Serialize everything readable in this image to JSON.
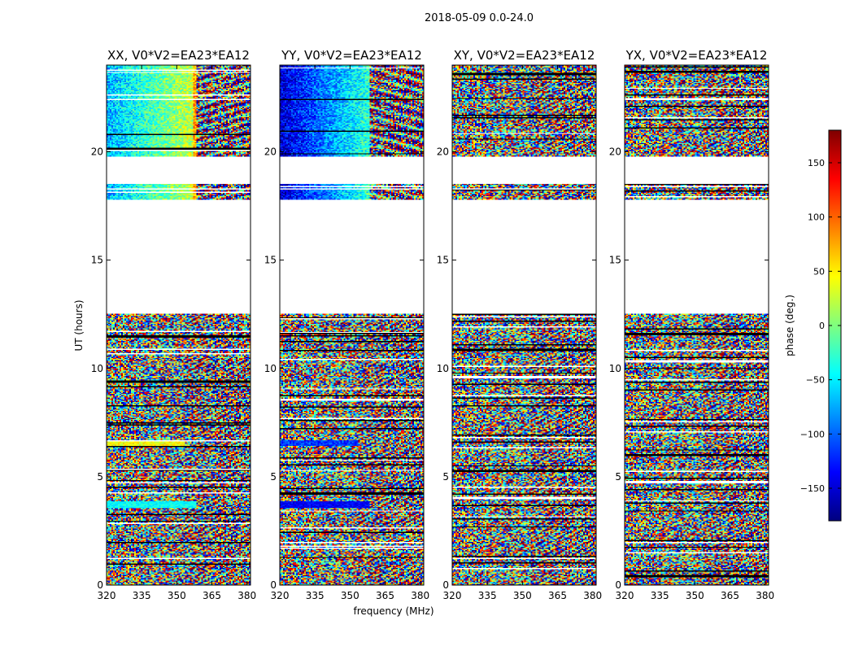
{
  "figure": {
    "suptitle": "2018-05-09 0.0-24.0"
  },
  "chart_data": {
    "type": "heatmap",
    "subtitle": "2018-05-09 0.0-24.0",
    "xlabel": "frequency (MHz)",
    "ylabel": "UT (hours)",
    "xlim": [
      320,
      381.5
    ],
    "ylim": [
      0,
      24
    ],
    "xticks": [
      320,
      335,
      350,
      365,
      380
    ],
    "yticks": [
      0,
      5,
      10,
      15,
      20
    ],
    "colorbar": {
      "label": "phase (deg.)",
      "range": [
        -180,
        180
      ],
      "ticks": [
        150,
        100,
        50,
        0,
        -50,
        -100,
        -150
      ],
      "tick_labels": [
        "150",
        "100",
        "50",
        "0",
        "−50",
        "−100",
        "−150"
      ],
      "colormap": "jet"
    },
    "time_ranges_with_data": [
      [
        0.0,
        12.5
      ],
      [
        17.8,
        18.5
      ],
      [
        19.8,
        24.0
      ]
    ],
    "panels": [
      {
        "title": "XX, V0*V2=EA23*EA12",
        "pattern": "XX"
      },
      {
        "title": "YY, V0*V2=EA23*EA12",
        "pattern": "YY"
      },
      {
        "title": "XY, V0*V2=EA23*EA12",
        "pattern": "noise"
      },
      {
        "title": "YX, V0*V2=EA23*EA12",
        "pattern": "noise"
      }
    ]
  },
  "colors": {
    "jet": [
      "#00007f",
      "#0000ff",
      "#007fff",
      "#00ffff",
      "#7fff7f",
      "#ffff00",
      "#ff7f00",
      "#ff0000",
      "#7f0000"
    ]
  }
}
